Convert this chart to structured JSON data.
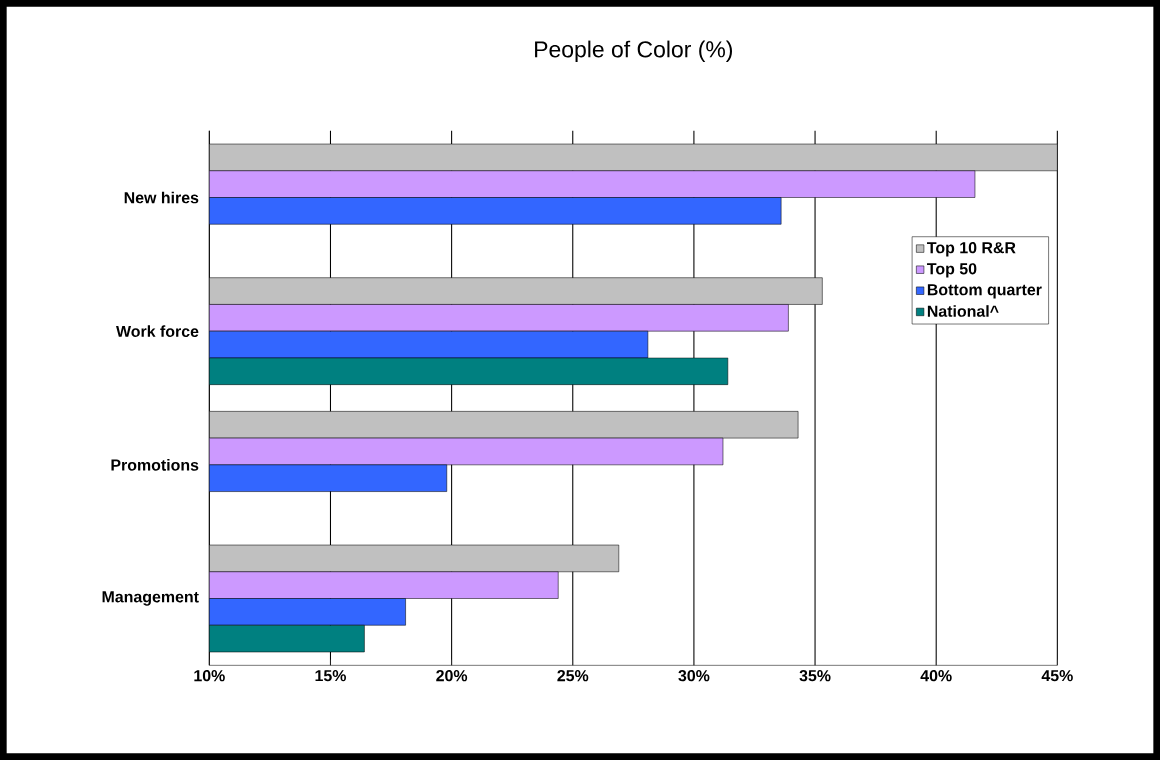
{
  "chart_data": {
    "type": "bar",
    "orientation": "horizontal",
    "title": "People of Color (%)",
    "categories": [
      "New hires",
      "Work force",
      "Promotions",
      "Management"
    ],
    "series": [
      {
        "name": "Top 10 R&R",
        "color": "#c0c0c0",
        "values": [
          45,
          35.3,
          34.3,
          26.9
        ]
      },
      {
        "name": "Top 50",
        "color": "#cc99ff",
        "values": [
          41.6,
          33.9,
          31.2,
          24.4
        ]
      },
      {
        "name": "Bottom quarter",
        "color": "#3366ff",
        "values": [
          33.6,
          28.1,
          19.8,
          18.1
        ]
      },
      {
        "name": "National^",
        "color": "#008080",
        "values": [
          null,
          31.4,
          null,
          16.4
        ]
      }
    ],
    "xlim": [
      10,
      45
    ],
    "xticks": [
      {
        "value": 10,
        "label": "10%"
      },
      {
        "value": 15,
        "label": "15%"
      },
      {
        "value": 20,
        "label": "20%"
      },
      {
        "value": 25,
        "label": "25%"
      },
      {
        "value": 30,
        "label": "30%"
      },
      {
        "value": 35,
        "label": "35%"
      },
      {
        "value": 40,
        "label": "40%"
      },
      {
        "value": 45,
        "label": "45%"
      }
    ],
    "grid": "x",
    "legend": "right"
  }
}
